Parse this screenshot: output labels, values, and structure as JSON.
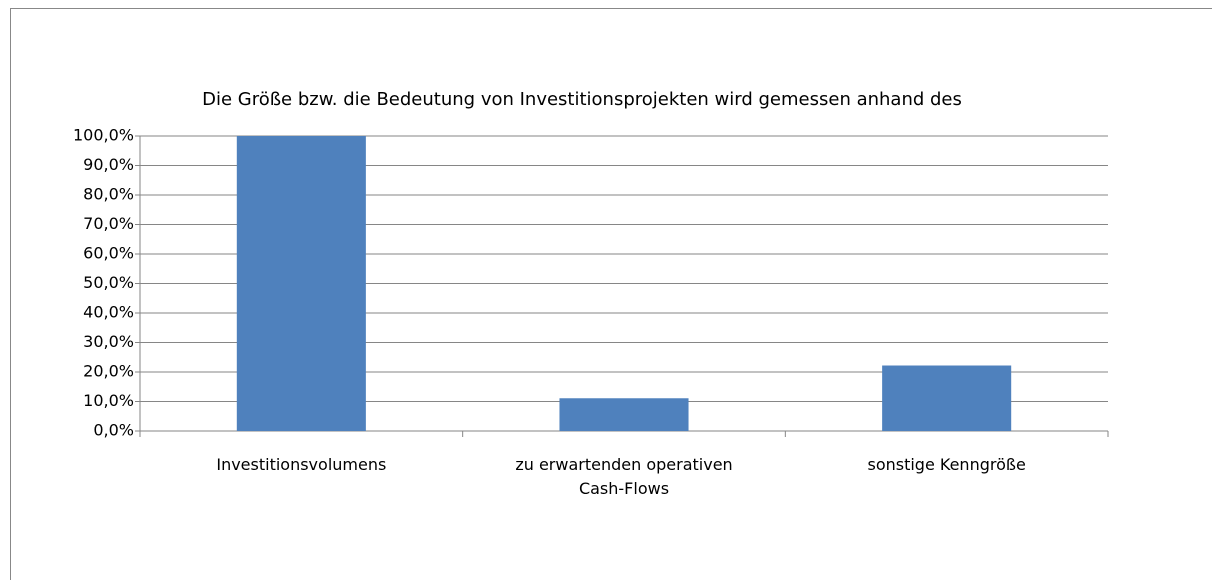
{
  "chart_data": {
    "type": "bar",
    "title": "Die Größe bzw. die  Bedeutung von Investitionsprojekten wird gemessen anhand des",
    "categories": [
      "Investitionsvolumens",
      "zu erwartenden operativen Cash-Flows",
      "sonstige Kenngröße"
    ],
    "values": [
      100,
      11.1,
      22.2
    ],
    "color": "#4f81bd",
    "ylim": [
      0,
      100
    ],
    "yticks": [
      {
        "value": 0,
        "label": "0,0%"
      },
      {
        "value": 10,
        "label": "10,0%"
      },
      {
        "value": 20,
        "label": "20,0%"
      },
      {
        "value": 30,
        "label": "30,0%"
      },
      {
        "value": 40,
        "label": "40,0%"
      },
      {
        "value": 50,
        "label": "50,0%"
      },
      {
        "value": 60,
        "label": "60,0%"
      },
      {
        "value": 70,
        "label": "70,0%"
      },
      {
        "value": 80,
        "label": "80,0%"
      },
      {
        "value": 90,
        "label": "90,0%"
      },
      {
        "value": 100,
        "label": "100,0%"
      }
    ],
    "grid": true
  }
}
